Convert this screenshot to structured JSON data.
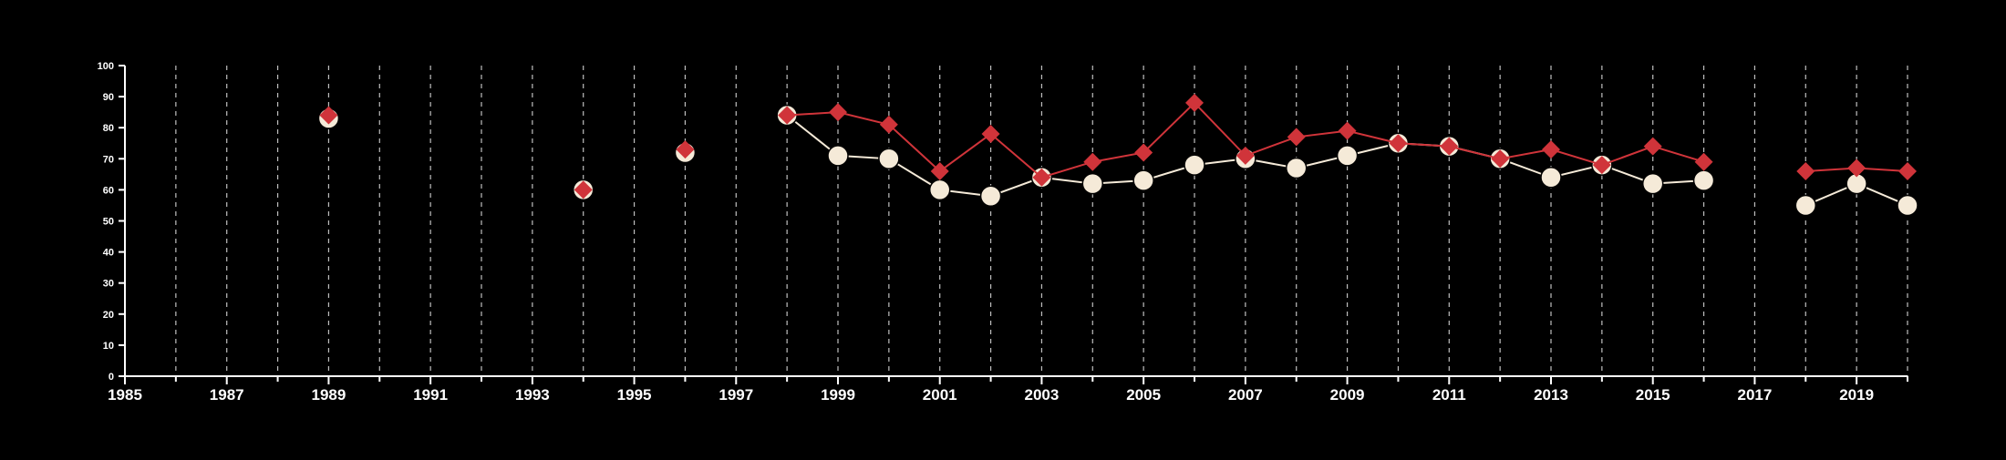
{
  "chart_data": {
    "type": "line",
    "title": "",
    "xlabel": "",
    "ylabel": "",
    "xlim": [
      1985,
      2020
    ],
    "ylim": [
      0,
      100
    ],
    "y_ticks": [
      0,
      10,
      20,
      30,
      40,
      50,
      60,
      70,
      80,
      90,
      100
    ],
    "x_ticks_labeled": [
      1985,
      1987,
      1989,
      1991,
      1993,
      1995,
      1997,
      1999,
      2001,
      2003,
      2005,
      2007,
      2009,
      2011,
      2013,
      2015,
      2017,
      2019
    ],
    "x_ticks_minor": [
      1986,
      1988,
      1990,
      1992,
      1994,
      1996,
      1998,
      2000,
      2002,
      2004,
      2006,
      2008,
      2010,
      2012,
      2014,
      2016,
      2018,
      2020
    ],
    "vertical_grid": "dashed",
    "legend": "none",
    "series": [
      {
        "color": "#f5ead8",
        "marker": "circle",
        "points": [
          [
            1989,
            83
          ],
          [
            1994,
            60
          ],
          [
            1996,
            72
          ],
          [
            1998,
            84
          ],
          [
            1999,
            71
          ],
          [
            2000,
            70
          ],
          [
            2001,
            60
          ],
          [
            2002,
            58
          ],
          [
            2003,
            64
          ],
          [
            2004,
            62
          ],
          [
            2005,
            63
          ],
          [
            2006,
            68
          ],
          [
            2007,
            70
          ],
          [
            2008,
            67
          ],
          [
            2009,
            71
          ],
          [
            2010,
            75
          ],
          [
            2011,
            74
          ],
          [
            2012,
            70
          ],
          [
            2013,
            64
          ],
          [
            2014,
            68
          ],
          [
            2015,
            62
          ],
          [
            2016,
            63
          ],
          [
            2018,
            55
          ],
          [
            2019,
            62
          ],
          [
            2020,
            55
          ]
        ]
      },
      {
        "color": "#d0343a",
        "marker": "diamond",
        "points": [
          [
            1989,
            84
          ],
          [
            1994,
            60
          ],
          [
            1996,
            73
          ],
          [
            1998,
            84
          ],
          [
            1999,
            85
          ],
          [
            2000,
            81
          ],
          [
            2001,
            66
          ],
          [
            2002,
            78
          ],
          [
            2003,
            64
          ],
          [
            2004,
            69
          ],
          [
            2005,
            72
          ],
          [
            2006,
            88
          ],
          [
            2007,
            71
          ],
          [
            2008,
            77
          ],
          [
            2009,
            79
          ],
          [
            2010,
            75
          ],
          [
            2011,
            74
          ],
          [
            2012,
            70
          ],
          [
            2013,
            73
          ],
          [
            2014,
            68
          ],
          [
            2015,
            74
          ],
          [
            2016,
            69
          ],
          [
            2018,
            66
          ],
          [
            2019,
            67
          ],
          [
            2020,
            66
          ]
        ]
      }
    ]
  }
}
